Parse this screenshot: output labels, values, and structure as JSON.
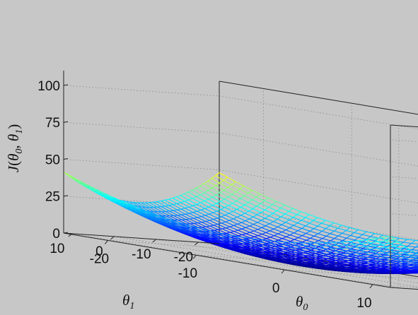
{
  "chart_data": {
    "type": "surface",
    "style": "mesh",
    "function": "J(theta0, theta1) = 0.06*(theta0+5)^2 + 0.06*(theta1+5)^2",
    "colormap": "jet",
    "grid": true,
    "x": {
      "label_main": "θ",
      "label_sub": "0",
      "range": [
        -25,
        12
      ],
      "ticks": [
        -20,
        -10,
        0,
        10
      ]
    },
    "y": {
      "label_main": "θ",
      "label_sub": "1",
      "range": [
        -25,
        12
      ],
      "ticks": [
        -20,
        -10,
        0,
        10
      ]
    },
    "z": {
      "label_func": "J",
      "label_args": [
        "θ",
        "0",
        "θ",
        "1"
      ],
      "range": [
        0,
        110
      ],
      "ticks": [
        0,
        25,
        50,
        75,
        100
      ]
    },
    "mesh_steps": 40
  }
}
